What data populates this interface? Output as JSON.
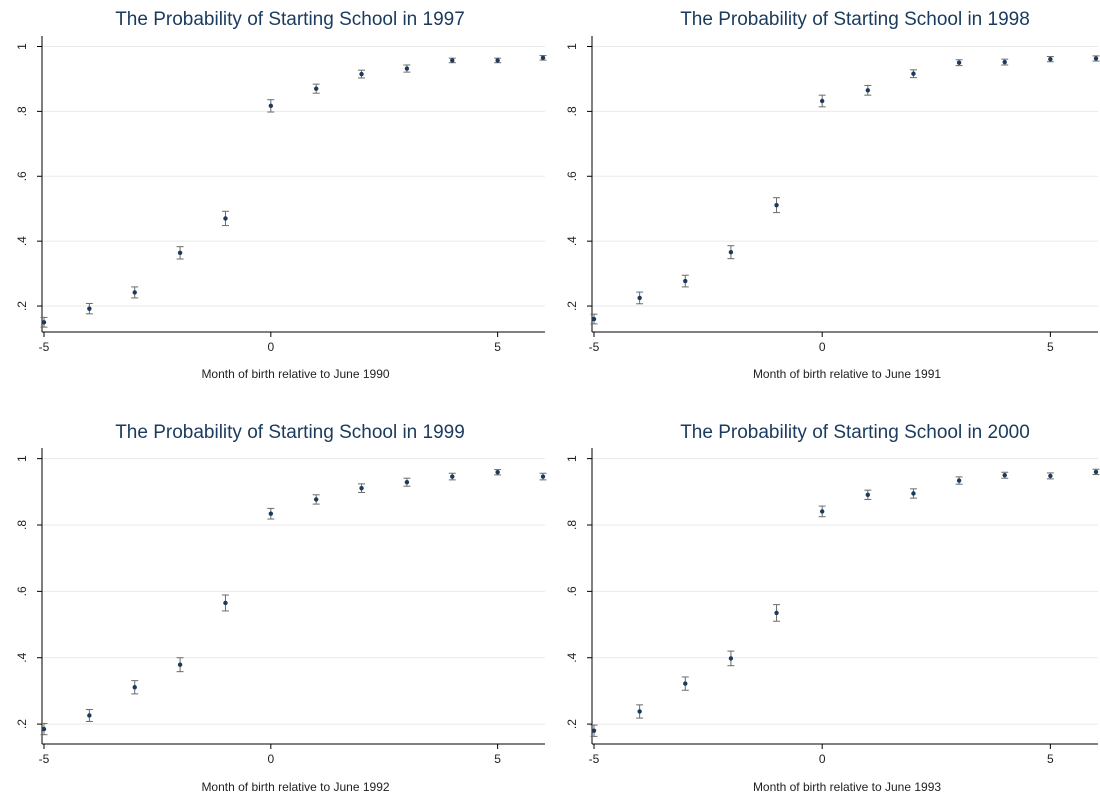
{
  "chart_data": [
    {
      "type": "scatter",
      "title": "The Probability of Starting School in 1997",
      "xlabel": "Month of birth relative to June 1990",
      "ylabel": "",
      "xlim": [
        -5,
        6
      ],
      "ylim": [
        0.12,
        1.02
      ],
      "xticks": [
        -5,
        0,
        5
      ],
      "xtick_labels": [
        "-5",
        "0",
        "5"
      ],
      "yticks": [
        0.2,
        0.4,
        0.6,
        0.8,
        1
      ],
      "ytick_labels": [
        ".2",
        ".4",
        ".6",
        ".8",
        "1"
      ],
      "grid": true,
      "x": [
        -5,
        -4,
        -3,
        -2,
        -1,
        0,
        1,
        2,
        3,
        4,
        5,
        6
      ],
      "y": [
        0.15,
        0.192,
        0.242,
        0.364,
        0.47,
        0.817,
        0.87,
        0.915,
        0.932,
        0.957,
        0.957,
        0.965
      ],
      "lower": [
        0.135,
        0.176,
        0.225,
        0.345,
        0.448,
        0.798,
        0.856,
        0.903,
        0.921,
        0.95,
        0.95,
        0.958
      ],
      "upper": [
        0.165,
        0.208,
        0.259,
        0.383,
        0.492,
        0.836,
        0.884,
        0.927,
        0.943,
        0.964,
        0.964,
        0.972
      ]
    },
    {
      "type": "scatter",
      "title": "The Probability of Starting School in 1998",
      "xlabel": "Month of birth relative to June 1991",
      "ylabel": "",
      "xlim": [
        -5,
        6
      ],
      "ylim": [
        0.12,
        1.02
      ],
      "xticks": [
        -5,
        0,
        5
      ],
      "xtick_labels": [
        "-5",
        "0",
        "5"
      ],
      "yticks": [
        0.2,
        0.4,
        0.6,
        0.8,
        1
      ],
      "ytick_labels": [
        ".2",
        ".4",
        ".6",
        ".8",
        "1"
      ],
      "grid": true,
      "x": [
        -5,
        -4,
        -3,
        -2,
        -1,
        0,
        1,
        2,
        3,
        4,
        5,
        6
      ],
      "y": [
        0.16,
        0.225,
        0.277,
        0.366,
        0.511,
        0.832,
        0.865,
        0.916,
        0.95,
        0.952,
        0.961,
        0.963
      ],
      "lower": [
        0.145,
        0.207,
        0.259,
        0.346,
        0.488,
        0.814,
        0.85,
        0.904,
        0.941,
        0.943,
        0.953,
        0.955
      ],
      "upper": [
        0.175,
        0.243,
        0.295,
        0.386,
        0.534,
        0.85,
        0.88,
        0.928,
        0.959,
        0.961,
        0.969,
        0.971
      ]
    },
    {
      "type": "scatter",
      "title": "The Probability of Starting School in 1999",
      "xlabel": "Month of birth relative to June 1992",
      "ylabel": "",
      "xlim": [
        -5,
        6
      ],
      "ylim": [
        0.14,
        1.02
      ],
      "xticks": [
        -5,
        0,
        5
      ],
      "xtick_labels": [
        "-5",
        "0",
        "5"
      ],
      "yticks": [
        0.2,
        0.4,
        0.6,
        0.8,
        1
      ],
      "ytick_labels": [
        ".2",
        ".4",
        ".6",
        ".8",
        "1"
      ],
      "grid": true,
      "x": [
        -5,
        -4,
        -3,
        -2,
        -1,
        0,
        1,
        2,
        3,
        4,
        5,
        6
      ],
      "y": [
        0.185,
        0.226,
        0.311,
        0.379,
        0.565,
        0.834,
        0.877,
        0.911,
        0.929,
        0.946,
        0.959,
        0.946
      ],
      "lower": [
        0.168,
        0.208,
        0.291,
        0.358,
        0.541,
        0.818,
        0.863,
        0.898,
        0.917,
        0.936,
        0.951,
        0.936
      ],
      "upper": [
        0.202,
        0.244,
        0.331,
        0.4,
        0.589,
        0.85,
        0.891,
        0.924,
        0.941,
        0.956,
        0.967,
        0.956
      ]
    },
    {
      "type": "scatter",
      "title": "The Probability of Starting School in 2000",
      "xlabel": "Month of birth relative to June 1993",
      "ylabel": "",
      "xlim": [
        -5,
        6
      ],
      "ylim": [
        0.14,
        1.02
      ],
      "xticks": [
        -5,
        0,
        5
      ],
      "xtick_labels": [
        "-5",
        "0",
        "5"
      ],
      "yticks": [
        0.2,
        0.4,
        0.6,
        0.8,
        1
      ],
      "ytick_labels": [
        ".2",
        ".4",
        ".6",
        ".8",
        "1"
      ],
      "grid": true,
      "x": [
        -5,
        -4,
        -3,
        -2,
        -1,
        0,
        1,
        2,
        3,
        4,
        5,
        6
      ],
      "y": [
        0.18,
        0.238,
        0.322,
        0.398,
        0.535,
        0.841,
        0.891,
        0.895,
        0.934,
        0.95,
        0.948,
        0.96
      ],
      "lower": [
        0.163,
        0.218,
        0.302,
        0.376,
        0.51,
        0.825,
        0.877,
        0.881,
        0.923,
        0.941,
        0.939,
        0.952
      ],
      "upper": [
        0.197,
        0.258,
        0.342,
        0.42,
        0.56,
        0.857,
        0.905,
        0.909,
        0.945,
        0.959,
        0.957,
        0.968
      ]
    }
  ]
}
